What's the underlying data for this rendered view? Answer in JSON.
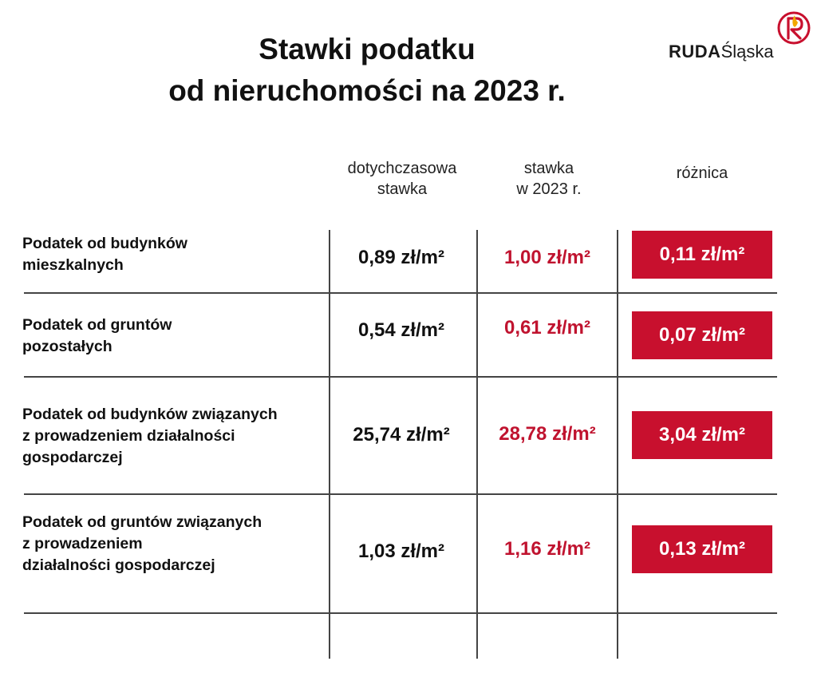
{
  "title": {
    "line1": "Stawki podatku",
    "line2": "od nieruchomości na 2023 r."
  },
  "logo": {
    "bold": "RUDA",
    "light": "Śląska",
    "emblem_icon": "ruda-slaska-emblem-icon",
    "accent_color": "#c8102e",
    "emblem_secondary_color": "#f2a900"
  },
  "headers": {
    "old_line1": "dotychczasowa",
    "old_line2": "stawka",
    "new_line1": "stawka",
    "new_line2": "w 2023 r.",
    "diff": "różnica"
  },
  "colors": {
    "new_value": "#c0132f",
    "diff_box": "#c8102e",
    "lines": "#444444"
  },
  "rows": [
    {
      "label": [
        "Podatek od budynków",
        "mieszkalnych"
      ],
      "old": "0,89 zł/m²",
      "new": "1,00 zł/m²",
      "diff": "0,11 zł/m²"
    },
    {
      "label": [
        "Podatek od gruntów",
        "pozostałych"
      ],
      "old": "0,54 zł/m²",
      "new": "0,61 zł/m²",
      "diff": "0,07 zł/m²"
    },
    {
      "label": [
        "Podatek od budynków związanych",
        "z prowadzeniem działalności",
        "gospodarczej"
      ],
      "old": "25,74 zł/m²",
      "new": "28,78 zł/m²",
      "diff": "3,04 zł/m²"
    },
    {
      "label": [
        "Podatek od gruntów związanych",
        "z prowadzeniem",
        "działalności gospodarczej"
      ],
      "old": "1,03 zł/m²",
      "new": "1,16 zł/m²",
      "diff": "0,13 zł/m²"
    }
  ]
}
